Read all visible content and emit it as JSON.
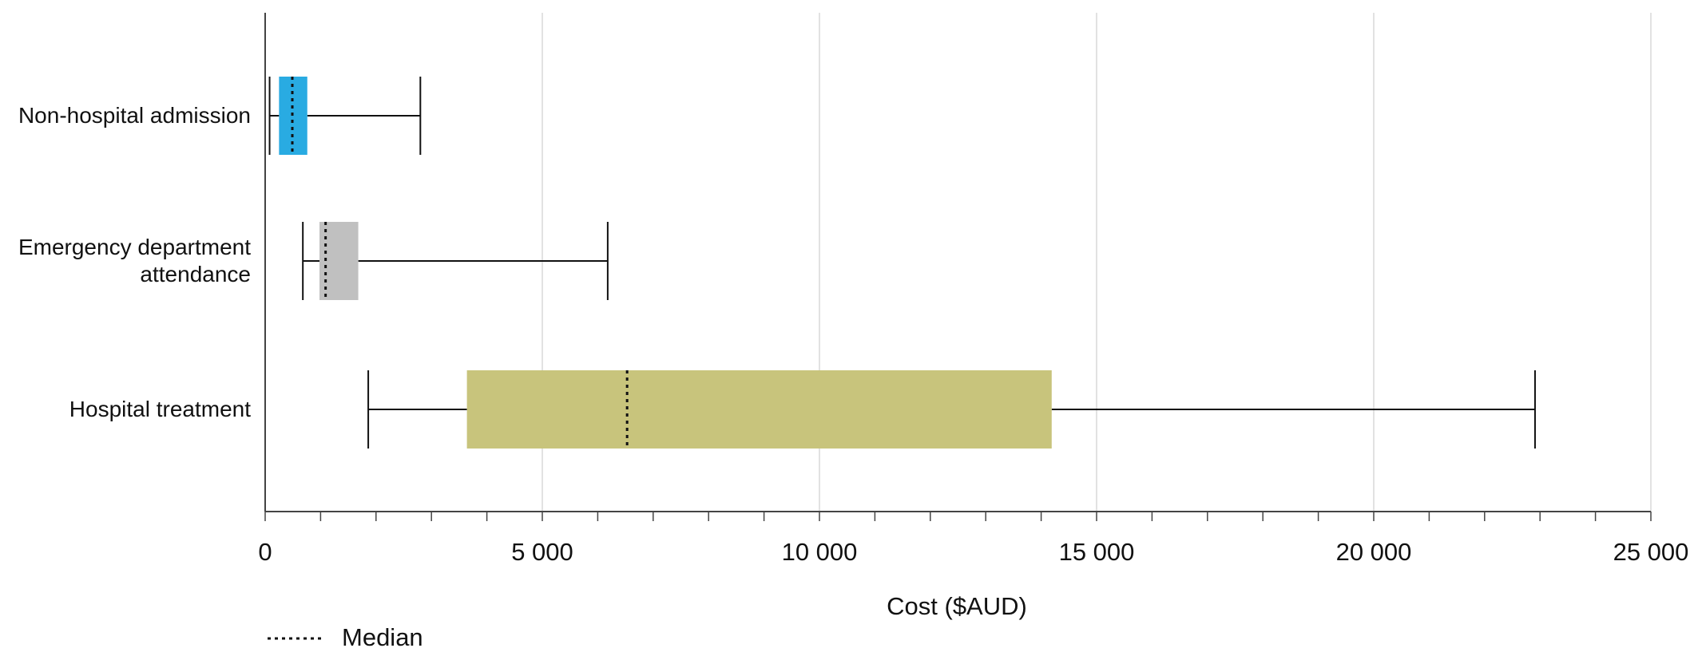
{
  "chart_data": {
    "type": "boxplot",
    "categories": [
      "Non-hospital admission",
      "Emergency department attendance",
      "Hospital treatment"
    ],
    "boxes": [
      {
        "low": 80,
        "q1": 250,
        "median": 490,
        "q3": 760,
        "high": 2800,
        "color": "#29abe2"
      },
      {
        "low": 680,
        "q1": 980,
        "median": 1090,
        "q3": 1680,
        "high": 6180,
        "color": "#c0c0c0"
      },
      {
        "low": 1860,
        "q1": 3640,
        "median": 6530,
        "q3": 14190,
        "high": 22910,
        "color": "#c8c47c"
      }
    ],
    "xlabel": "Cost ($AUD)",
    "xlim": [
      0,
      25000
    ],
    "xticks": [
      0,
      {
        "value": 5000,
        "label": "5 000"
      },
      {
        "value": 10000,
        "label": "10 000"
      },
      {
        "value": 15000,
        "label": "15 000"
      },
      {
        "value": 20000,
        "label": "20 000"
      },
      {
        "value": 25000,
        "label": "25 000"
      }
    ],
    "xminorticks": [
      1000,
      2000,
      3000,
      4000,
      6000,
      7000,
      8000,
      9000,
      11000,
      12000,
      13000,
      14000,
      16000,
      17000,
      18000,
      19000,
      21000,
      22000,
      23000,
      24000
    ],
    "grid": true,
    "legend": {
      "label": "Median",
      "position": "bottom-left"
    }
  }
}
